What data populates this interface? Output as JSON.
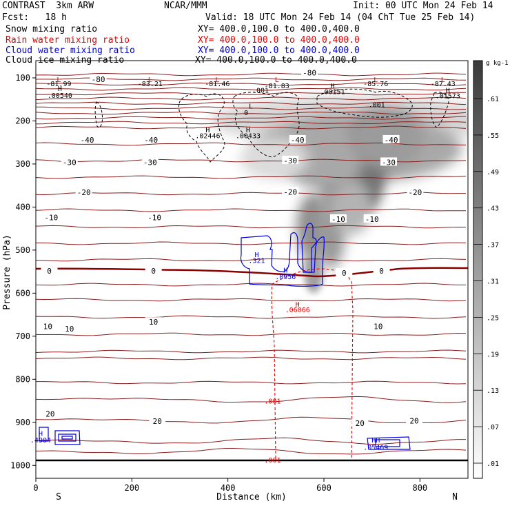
{
  "header": {
    "title_left": "CONTRAST  3km ARW",
    "title_center": "NCAR/MMM",
    "init": "Init: 00 UTC Mon 24 Feb 14",
    "fcst": "Fcst:   18 h",
    "valid": "Valid: 18 UTC Mon 24 Feb 14 (04 ChT Tue 25 Feb 14)"
  },
  "legend": [
    {
      "label": "Snow mixing ratio",
      "xy": "XY= 400.0,100.0 to 400.0,400.0",
      "color": "#000000"
    },
    {
      "label": "Rain water mixing ratio",
      "xy": "XY= 400.0,100.0 to 400.0,400.0",
      "color": "#e00000"
    },
    {
      "label": "Cloud water mixing ratio",
      "xy": "XY= 400.0,100.0 to 400.0,400.0",
      "color": "#0000e0"
    },
    {
      "label": "Cloud ice mixing ratio",
      "xy": "XY= 400.0,100.0 to 400.0,400.0",
      "color": "#000000"
    }
  ],
  "colors": {
    "temperature": "#8b1a1a",
    "freezing": "#8b0000",
    "rain": "#e00000",
    "cloud_water": "#0000e0"
  },
  "chart_data": {
    "type": "contour_cross_section",
    "xlabel": "Distance (km)",
    "ylabel": "Pressure (hPa)",
    "xlim": [
      0,
      900
    ],
    "ylim": [
      1030,
      60
    ],
    "x_ticks": [
      0,
      200,
      400,
      600,
      800
    ],
    "y_ticks": [
      100,
      200,
      300,
      400,
      500,
      600,
      700,
      800,
      900,
      1000
    ],
    "x_end_labels": {
      "left": "S",
      "right": "N"
    },
    "colorbar": {
      "units": "g kg-1",
      "ticks": [
        ".01",
        ".07",
        ".13",
        ".19",
        ".25",
        ".31",
        ".37",
        ".43",
        ".49",
        ".55",
        ".61"
      ]
    },
    "temperature_labels": [
      {
        "text": "-80",
        "x": 130,
        "p": 103
      },
      {
        "text": "-80",
        "x": 570,
        "p": 88
      },
      {
        "text": "-40",
        "x": 107,
        "p": 244
      },
      {
        "text": "-40",
        "x": 240,
        "p": 244
      },
      {
        "text": "-40",
        "x": 545,
        "p": 244
      },
      {
        "text": "-40",
        "x": 740,
        "p": 244
      },
      {
        "text": "-30",
        "x": 70,
        "p": 296
      },
      {
        "text": "-30",
        "x": 238,
        "p": 296
      },
      {
        "text": "-30",
        "x": 530,
        "p": 292
      },
      {
        "text": "-30",
        "x": 735,
        "p": 296
      },
      {
        "text": "-20",
        "x": 100,
        "p": 366
      },
      {
        "text": "-20",
        "x": 530,
        "p": 365
      },
      {
        "text": "-20",
        "x": 790,
        "p": 366
      },
      {
        "text": "-10",
        "x": 32,
        "p": 424
      },
      {
        "text": "-10",
        "x": 247,
        "p": 424
      },
      {
        "text": "-10",
        "x": 630,
        "p": 428
      },
      {
        "text": "-10",
        "x": 700,
        "p": 428
      },
      {
        "text": "0",
        "x": 28,
        "p": 548
      },
      {
        "text": "0",
        "x": 245,
        "p": 548
      },
      {
        "text": "0",
        "x": 642,
        "p": 553
      },
      {
        "text": "0",
        "x": 720,
        "p": 548
      },
      {
        "text": "10",
        "x": 25,
        "p": 677
      },
      {
        "text": "10",
        "x": 70,
        "p": 683
      },
      {
        "text": "10",
        "x": 245,
        "p": 667
      },
      {
        "text": "10",
        "x": 713,
        "p": 677
      },
      {
        "text": "20",
        "x": 30,
        "p": 880
      },
      {
        "text": "20",
        "x": 253,
        "p": 897
      },
      {
        "text": "20",
        "x": 675,
        "p": 902
      },
      {
        "text": "20",
        "x": 788,
        "p": 896
      }
    ],
    "extrema_labels": [
      {
        "text": "L",
        "x": 48,
        "p": 103,
        "color": "#8b1a1a"
      },
      {
        "text": "-81.99",
        "x": 48,
        "p": 113,
        "color": "#000000"
      },
      {
        "text": "L",
        "x": 238,
        "p": 103,
        "color": "#8b1a1a"
      },
      {
        "text": "-83.21",
        "x": 238,
        "p": 113,
        "color": "#000000"
      },
      {
        "text": "L",
        "x": 378,
        "p": 103,
        "color": "#8b1a1a"
      },
      {
        "text": "-81.46",
        "x": 378,
        "p": 113,
        "color": "#000000"
      },
      {
        "text": "L",
        "x": 502,
        "p": 103,
        "color": "#8b1a1a"
      },
      {
        "text": "-81.83",
        "x": 502,
        "p": 118,
        "color": "#000000"
      },
      {
        "text": "L",
        "x": 708,
        "p": 103,
        "color": "#8b1a1a"
      },
      {
        "text": "-85.76",
        "x": 708,
        "p": 113,
        "color": "#000000"
      },
      {
        "text": "L",
        "x": 848,
        "p": 103,
        "color": "#8b1a1a"
      },
      {
        "text": "-87.43",
        "x": 848,
        "p": 113,
        "color": "#000000"
      },
      {
        "text": "H",
        "x": 50,
        "p": 124,
        "color": "#000000"
      },
      {
        "text": ".00540",
        "x": 50,
        "p": 140,
        "color": "#000000"
      },
      {
        "text": "H",
        "x": 618,
        "p": 118,
        "color": "#000000"
      },
      {
        "text": ".00151",
        "x": 618,
        "p": 131,
        "color": "#000000"
      },
      {
        "text": "H",
        "x": 858,
        "p": 128,
        "color": "#000000"
      },
      {
        "text": ".01573",
        "x": 858,
        "p": 141,
        "color": "#000000"
      },
      {
        "text": "H",
        "x": 358,
        "p": 220,
        "color": "#000000"
      },
      {
        "text": ".02446",
        "x": 358,
        "p": 234,
        "color": "#000000"
      },
      {
        "text": "H",
        "x": 442,
        "p": 220,
        "color": "#000000"
      },
      {
        "text": ".00433",
        "x": 442,
        "p": 234,
        "color": "#000000"
      },
      {
        "text": "H",
        "x": 460,
        "p": 510,
        "color": "#0000e0"
      },
      {
        "text": ".321",
        "x": 460,
        "p": 523,
        "color": "#0000e0"
      },
      {
        "text": "H",
        "x": 520,
        "p": 546,
        "color": "#0000e0"
      },
      {
        "text": ".0956",
        "x": 520,
        "p": 561,
        "color": "#0000e0"
      },
      {
        "text": "H",
        "x": 545,
        "p": 625,
        "color": "#e00000"
      },
      {
        "text": ".06066",
        "x": 545,
        "p": 638,
        "color": "#e00000"
      },
      {
        "text": ".001",
        "x": 493,
        "p": 850,
        "color": "#e00000"
      },
      {
        "text": ".001",
        "x": 493,
        "p": 987,
        "color": "#e00000"
      },
      {
        "text": ".001",
        "x": 468,
        "p": 128,
        "color": "#000000"
      },
      {
        "text": ".001",
        "x": 710,
        "p": 162,
        "color": "#000000"
      },
      {
        "text": "L",
        "x": 448,
        "p": 165,
        "color": "#000000"
      },
      {
        "text": "0",
        "x": 438,
        "p": 180,
        "color": "#000000"
      },
      {
        "text": "H",
        "x": 10,
        "p": 925,
        "color": "#0000e0"
      },
      {
        "text": ".4904",
        "x": 10,
        "p": 940,
        "color": "#0000e0"
      },
      {
        "text": "HH",
        "x": 708,
        "p": 940,
        "color": "#0000e0"
      },
      {
        "text": ".05469",
        "x": 708,
        "p": 957,
        "color": "#0000e0"
      }
    ],
    "rain_envelope": {
      "x_left": 495,
      "x_right": 655,
      "top_p": 565,
      "bottom_p": 1005
    },
    "freezing_level_hPa": 548
  }
}
